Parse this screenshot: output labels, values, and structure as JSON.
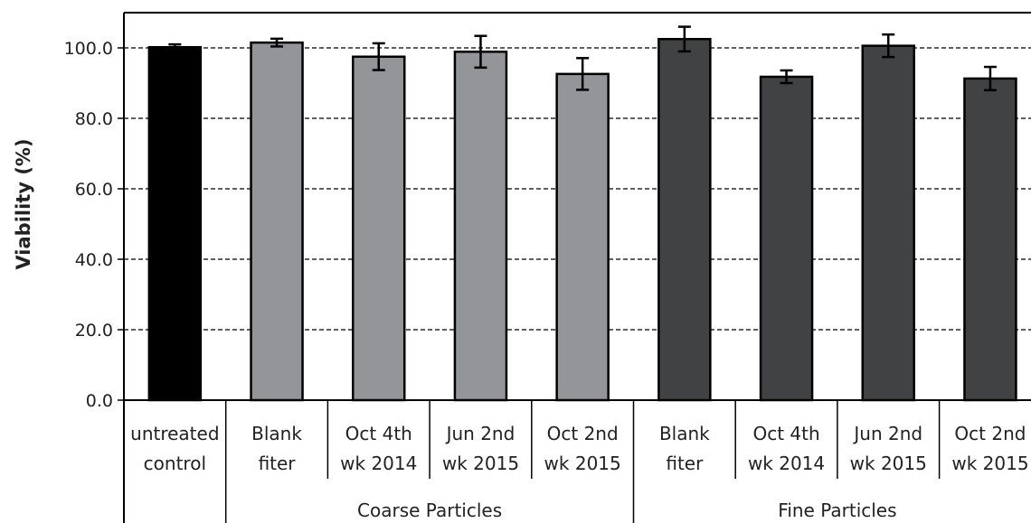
{
  "chart_data": {
    "type": "bar",
    "ylabel": "Viability (%)",
    "ylim": [
      0,
      110
    ],
    "yticks": [
      0,
      20,
      40,
      60,
      80,
      100
    ],
    "ytick_labels": [
      "0.0",
      "20.0",
      "40.0",
      "60.0",
      "80.0",
      "100.0"
    ],
    "grid": "horizontal dashed",
    "categories": [
      [
        "untreated",
        "control"
      ],
      [
        "Blank",
        "fiter"
      ],
      [
        "Oct 4th",
        "wk 2014"
      ],
      [
        "Jun 2nd",
        "wk 2015"
      ],
      [
        "Oct 2nd",
        "wk 2015"
      ],
      [
        "Blank",
        "fiter"
      ],
      [
        "Oct 4th",
        "wk 2014"
      ],
      [
        "Jun 2nd",
        "wk 2015"
      ],
      [
        "Oct 2nd",
        "wk 2015"
      ]
    ],
    "values": [
      100.2,
      101.5,
      97.5,
      98.9,
      92.6,
      102.5,
      91.8,
      100.6,
      91.3
    ],
    "errors": [
      0.8,
      1.1,
      3.8,
      4.5,
      4.5,
      3.5,
      1.8,
      3.2,
      3.3
    ],
    "bar_colors": [
      "#000000",
      "#939598",
      "#939598",
      "#939598",
      "#939598",
      "#414244",
      "#414244",
      "#414244",
      "#414244"
    ],
    "groups": [
      {
        "label": "",
        "categories": [
          0
        ]
      },
      {
        "label": "Coarse Particles",
        "categories": [
          1,
          2,
          3,
          4
        ]
      },
      {
        "label": "Fine Particles",
        "categories": [
          5,
          6,
          7,
          8
        ]
      }
    ]
  }
}
